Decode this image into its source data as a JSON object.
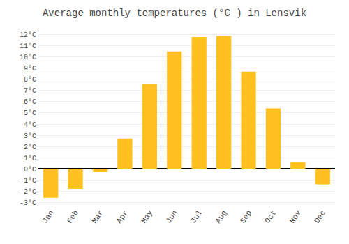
{
  "chart_data": {
    "type": "bar",
    "title": "Average monthly temperatures (°C ) in Lensvik",
    "categories": [
      "Jan",
      "Feb",
      "Mar",
      "Apr",
      "May",
      "Jun",
      "Jul",
      "Aug",
      "Sep",
      "Oct",
      "Nov",
      "Dec"
    ],
    "values": [
      -2.6,
      -1.8,
      -0.3,
      2.7,
      7.6,
      10.5,
      11.8,
      11.9,
      8.7,
      5.4,
      0.6,
      -1.4
    ],
    "color": "#FFC020",
    "ylim": [
      -3.3,
      12.3
    ],
    "yticks": [
      {
        "value": -3,
        "label": "-3°C"
      },
      {
        "value": -2,
        "label": "-2°C"
      },
      {
        "value": -1,
        "label": "-1°C"
      },
      {
        "value": 0,
        "label": "0°C"
      },
      {
        "value": 1,
        "label": "1°C"
      },
      {
        "value": 2,
        "label": "2°C"
      },
      {
        "value": 3,
        "label": "3°C"
      },
      {
        "value": 4,
        "label": "4°C"
      },
      {
        "value": 5,
        "label": "5°C"
      },
      {
        "value": 6,
        "label": "6°C"
      },
      {
        "value": 7,
        "label": "7°C"
      },
      {
        "value": 8,
        "label": "8°C"
      },
      {
        "value": 9,
        "label": "9°C"
      },
      {
        "value": 10,
        "label": "10°C"
      },
      {
        "value": 11,
        "label": "11°C"
      },
      {
        "value": 12,
        "label": "12°C"
      }
    ],
    "grid": true
  }
}
